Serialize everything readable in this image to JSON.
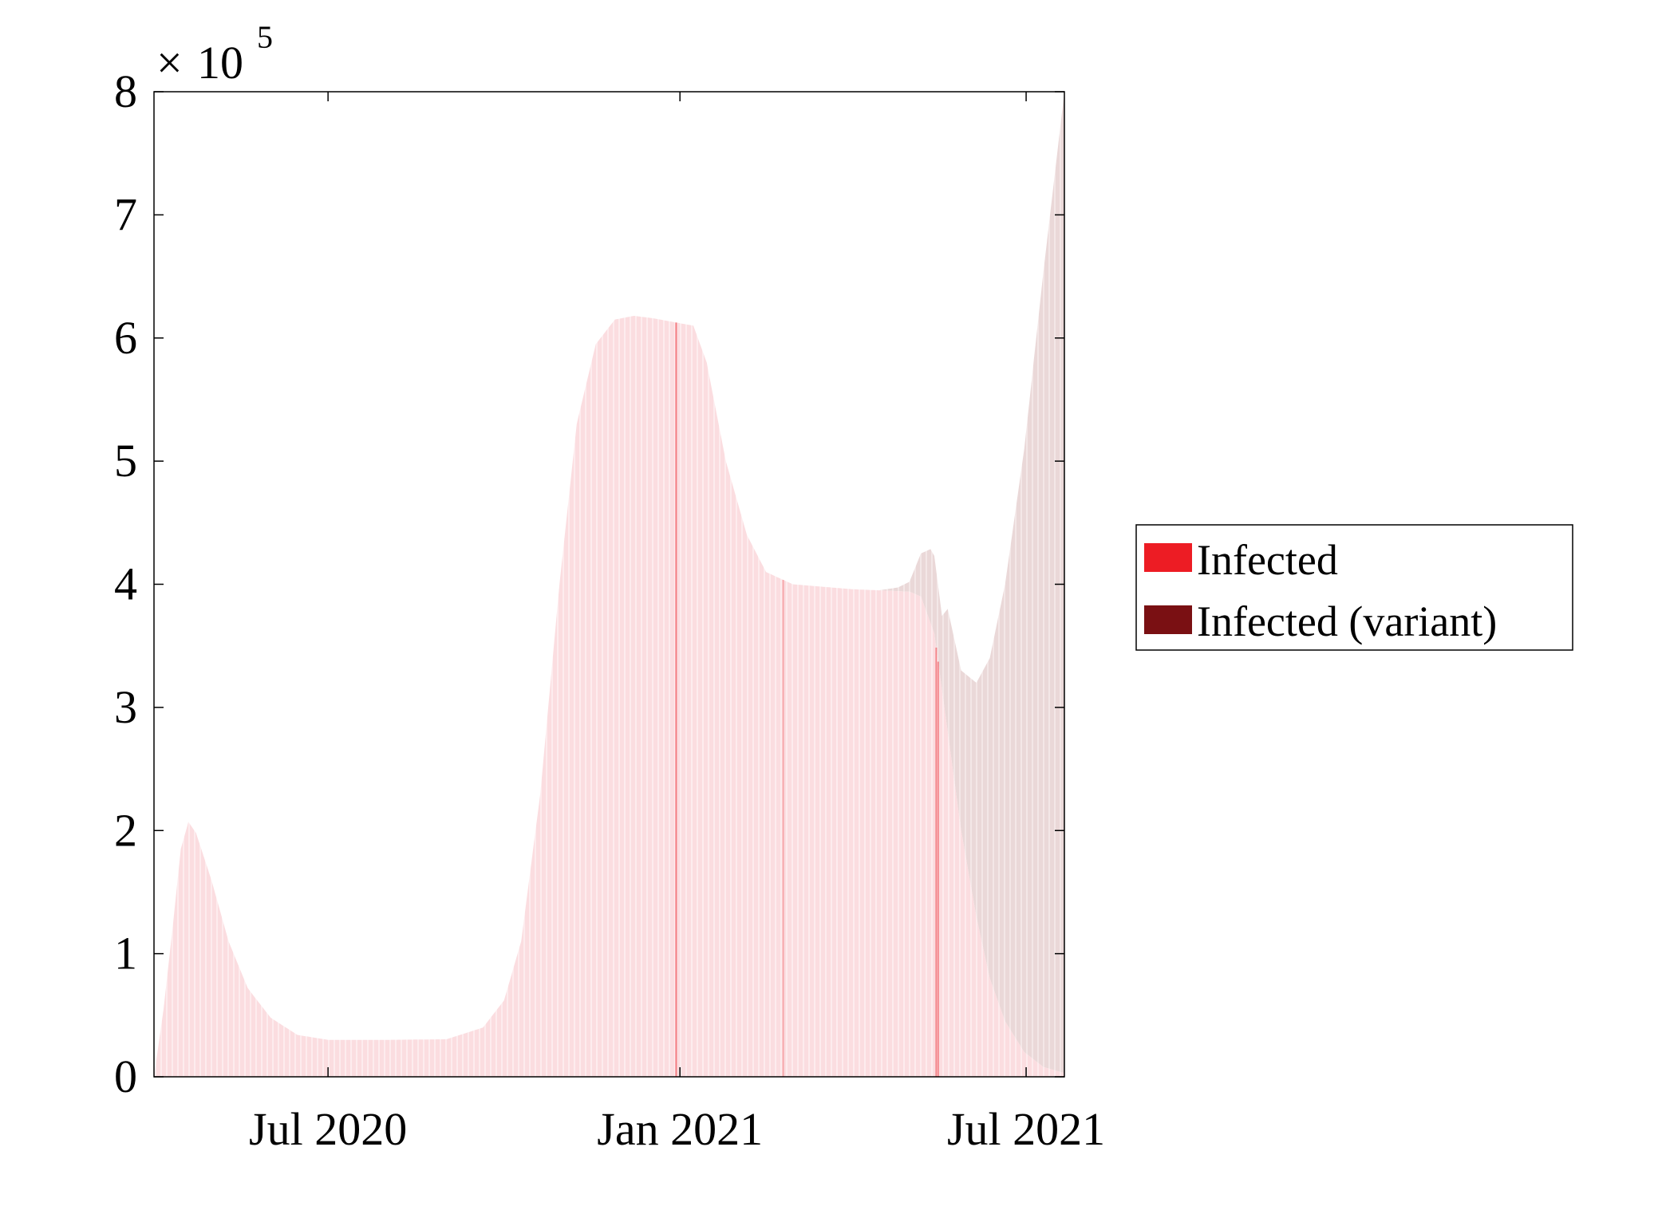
{
  "chart_data": {
    "type": "area",
    "title": "",
    "xlabel": "",
    "ylabel": "",
    "x_ticks": [
      {
        "date": "2020-07-01",
        "label": "Jul 2020"
      },
      {
        "date": "2021-01-01",
        "label": "Jan 2021"
      },
      {
        "date": "2021-07-01",
        "label": "Jul 2021"
      }
    ],
    "xlim": [
      "2020-04-01",
      "2021-07-21"
    ],
    "ylim": [
      0,
      800000
    ],
    "y_ticks": [
      "0",
      "1",
      "2",
      "3",
      "4",
      "5",
      "6",
      "7",
      "8"
    ],
    "y_multiplier": {
      "base": "10",
      "exponent": "5",
      "sign": "×"
    },
    "grid": false,
    "legend_position": "right",
    "stacked": true,
    "series": [
      {
        "name": "Infected",
        "color": "#ed1c24",
        "points": [
          [
            "2020-04-01",
            0
          ],
          [
            "2020-04-06",
            55000
          ],
          [
            "2020-04-11",
            125000
          ],
          [
            "2020-04-15",
            185000
          ],
          [
            "2020-04-19",
            207000
          ],
          [
            "2020-04-23",
            198000
          ],
          [
            "2020-05-01",
            160000
          ],
          [
            "2020-05-10",
            110000
          ],
          [
            "2020-05-20",
            72000
          ],
          [
            "2020-06-01",
            48000
          ],
          [
            "2020-06-15",
            34000
          ],
          [
            "2020-07-01",
            30000
          ],
          [
            "2020-08-01",
            30000
          ],
          [
            "2020-09-01",
            30500
          ],
          [
            "2020-09-20",
            40000
          ],
          [
            "2020-10-01",
            62000
          ],
          [
            "2020-10-10",
            110000
          ],
          [
            "2020-10-20",
            230000
          ],
          [
            "2020-10-30",
            400000
          ],
          [
            "2020-11-08",
            530000
          ],
          [
            "2020-11-18",
            595000
          ],
          [
            "2020-11-28",
            615000
          ],
          [
            "2020-12-08",
            618000
          ],
          [
            "2020-12-18",
            616000
          ],
          [
            "2021-01-01",
            612000
          ],
          [
            "2021-01-08",
            610000
          ],
          [
            "2021-01-15",
            580000
          ],
          [
            "2021-01-25",
            500000
          ],
          [
            "2021-02-05",
            440000
          ],
          [
            "2021-02-15",
            410000
          ],
          [
            "2021-03-01",
            400000
          ],
          [
            "2021-04-01",
            396000
          ],
          [
            "2021-05-01",
            394000
          ],
          [
            "2021-05-07",
            390000
          ],
          [
            "2021-05-14",
            360000
          ],
          [
            "2021-05-21",
            280000
          ],
          [
            "2021-05-28",
            200000
          ],
          [
            "2021-06-05",
            130000
          ],
          [
            "2021-06-12",
            80000
          ],
          [
            "2021-06-20",
            45000
          ],
          [
            "2021-06-30",
            20000
          ],
          [
            "2021-07-10",
            8000
          ],
          [
            "2021-07-21",
            3000
          ]
        ]
      },
      {
        "name": "Infected (variant)",
        "color": "#7a1013",
        "points": [
          [
            "2021-04-15",
            0
          ],
          [
            "2021-04-25",
            3000
          ],
          [
            "2021-05-01",
            8000
          ],
          [
            "2021-05-07",
            35000
          ],
          [
            "2021-05-12",
            60000
          ],
          [
            "2021-05-14",
            63000
          ],
          [
            "2021-05-18",
            60000
          ],
          [
            "2021-05-21",
            100000
          ],
          [
            "2021-05-28",
            130000
          ],
          [
            "2021-06-05",
            190000
          ],
          [
            "2021-06-12",
            260000
          ],
          [
            "2021-06-20",
            355000
          ],
          [
            "2021-06-30",
            490000
          ],
          [
            "2021-07-10",
            645000
          ],
          [
            "2021-07-21",
            797000
          ]
        ]
      }
    ]
  }
}
